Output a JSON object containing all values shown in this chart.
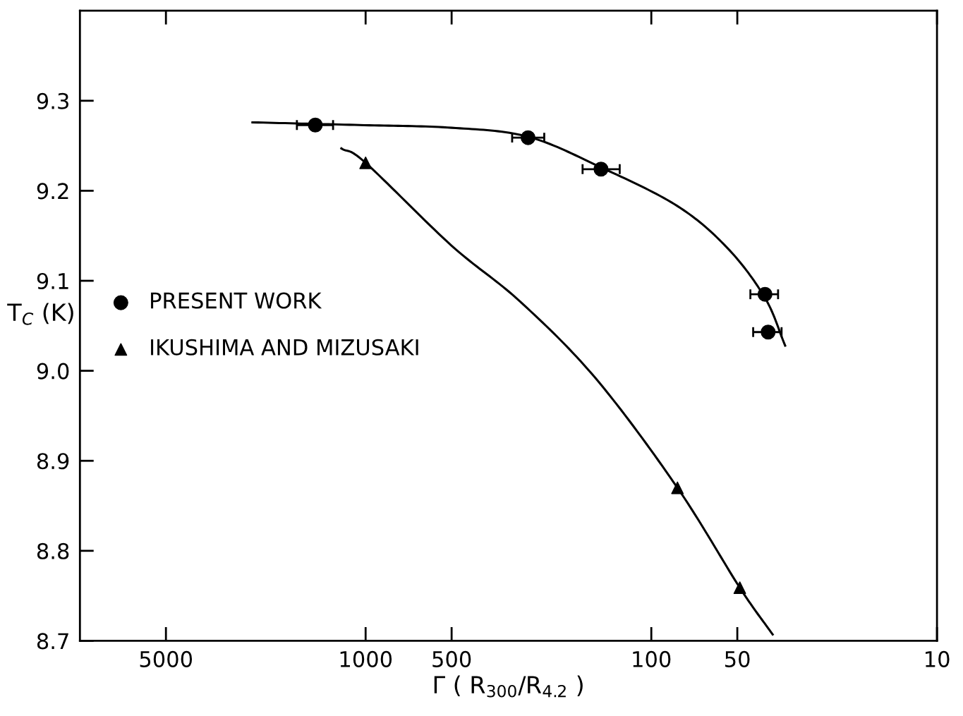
{
  "chart_data": {
    "type": "scatter",
    "xlabel": "Γ ( R$_{300}$/R$_{4.2}$ )",
    "ylabel": "T$_{C}$ (K)",
    "log": "x",
    "xlim": [
      10000,
      10
    ],
    "xticks": [
      5000,
      1000,
      500,
      100,
      50,
      10
    ],
    "ylim": [
      8.7,
      9.4
    ],
    "yticks": [
      {
        "value": 8.7,
        "label": "8.7"
      },
      {
        "value": 8.8,
        "label": "8.8"
      },
      {
        "value": 8.9,
        "label": "8.9"
      },
      {
        "value": 9.0,
        "label": "9.0"
      },
      {
        "value": 9.1,
        "label": "9.1"
      },
      {
        "value": 9.2,
        "label": "9.2"
      },
      {
        "value": 9.3,
        "label": "9.3"
      }
    ],
    "grid": false,
    "legend": "center left",
    "series": [
      {
        "name": "PRESENT WORK",
        "marker": "circle",
        "color": "#000000",
        "x": [
          1500,
          270,
          150,
          40,
          39
        ],
        "values": [
          9.273,
          9.259,
          9.224,
          9.085,
          9.043
        ],
        "xerrors": [
          [
            1300,
            1740
          ],
          [
            237,
            307
          ],
          [
            129,
            174
          ],
          [
            36,
            45
          ],
          [
            35,
            44
          ]
        ]
      },
      {
        "name": "IKUSHIMA AND MIZUSAKI",
        "marker": "triangle",
        "color": "#000000",
        "x": [
          1000,
          81,
          49
        ],
        "values": [
          9.231,
          8.87,
          8.759
        ]
      },
      {
        "type": "line",
        "marker": "none",
        "color": "#000000",
        "x": [
          2490,
          1050,
          500,
          270,
          150,
          81,
          54,
          40,
          34
        ],
        "values": [
          9.276,
          9.273,
          9.27,
          9.26,
          9.226,
          9.183,
          9.136,
          9.081,
          9.028
        ]
      },
      {
        "type": "line",
        "marker": "none",
        "color": "#000000",
        "x": [
          1216,
          1000,
          500,
          288,
          156,
          81,
          49,
          37.6
        ],
        "values": [
          9.247,
          9.231,
          9.139,
          9.077,
          8.991,
          8.87,
          8.759,
          8.707
        ]
      }
    ]
  }
}
